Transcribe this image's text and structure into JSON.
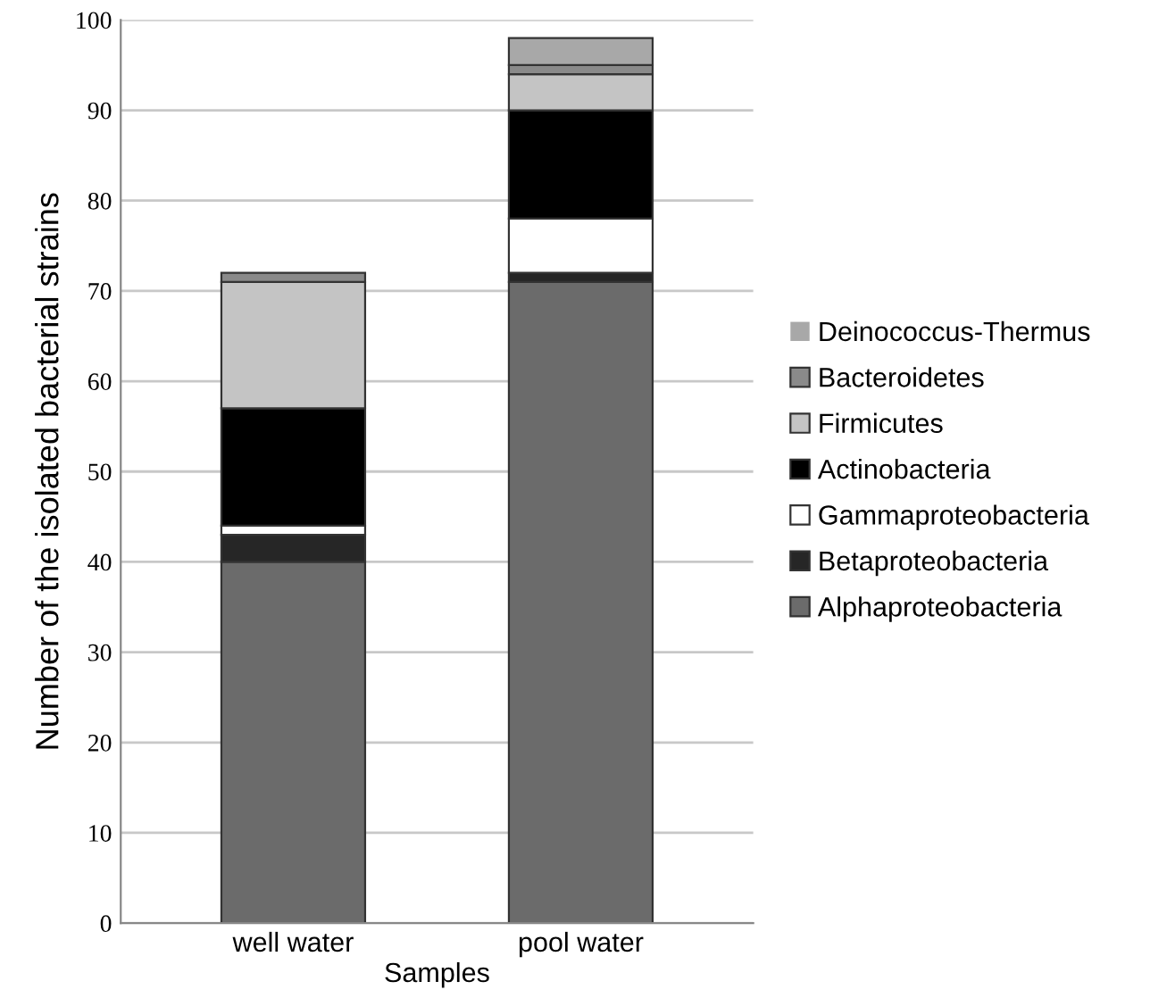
{
  "chart_data": {
    "type": "bar",
    "stacked": true,
    "xlabel": "Samples",
    "ylabel": "Number of the isolated bacterial strains",
    "categories": [
      "well water",
      "pool water"
    ],
    "series": [
      {
        "name": "Alphaproteobacteria",
        "color": "#6b6b6b",
        "values": [
          40,
          71
        ]
      },
      {
        "name": "Betaproteobacteria",
        "color": "#262626",
        "values": [
          3,
          1
        ]
      },
      {
        "name": "Gammaproteobacteria",
        "color": "#ffffff",
        "values": [
          1,
          6
        ]
      },
      {
        "name": "Actinobacteria",
        "color": "#000000",
        "values": [
          13,
          12
        ]
      },
      {
        "name": "Firmicutes",
        "color": "#c4c4c4",
        "values": [
          14,
          4
        ]
      },
      {
        "name": "Bacteroidetes",
        "color": "#8a8a8a",
        "values": [
          1,
          1
        ]
      },
      {
        "name": "Deinococcus-Thermus",
        "color": "#a8a8a8",
        "values": [
          0,
          3
        ]
      }
    ],
    "ylim": [
      0,
      100
    ],
    "yticks": [
      0,
      10,
      20,
      30,
      40,
      50,
      60,
      70,
      80,
      90,
      100
    ],
    "grid": "y",
    "legend": "right"
  }
}
